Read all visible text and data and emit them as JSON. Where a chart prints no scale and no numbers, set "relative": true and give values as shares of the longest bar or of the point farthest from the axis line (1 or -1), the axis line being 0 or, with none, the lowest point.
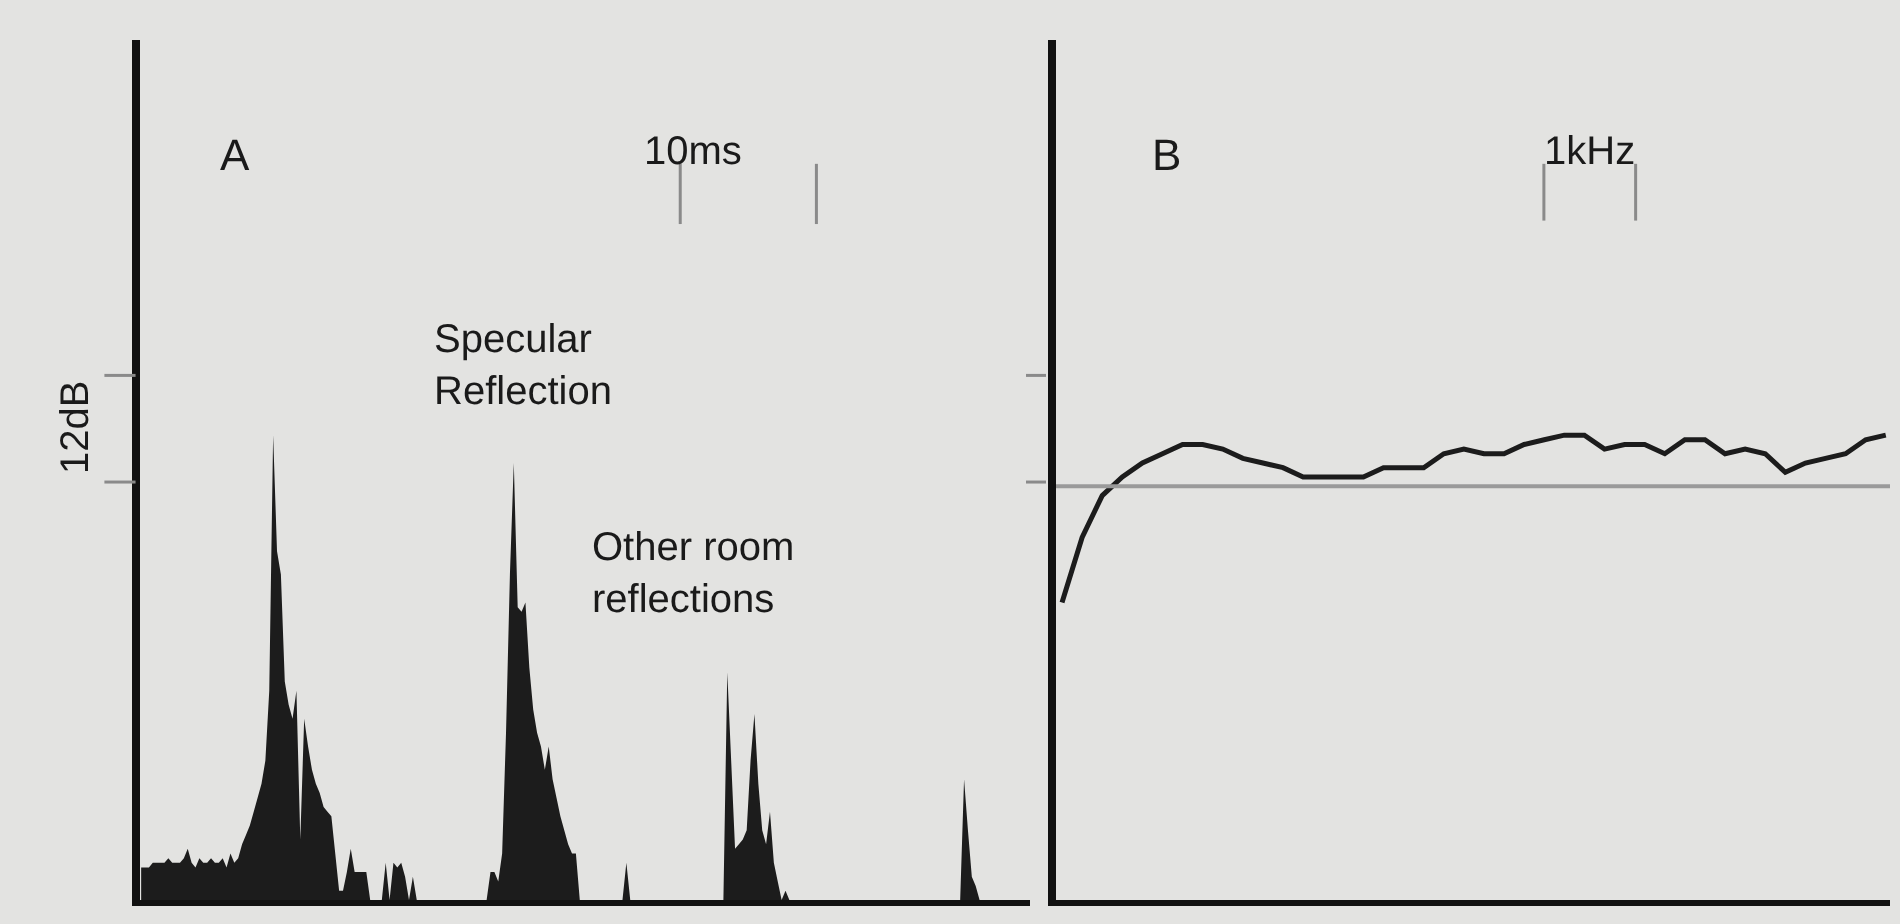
{
  "chart_data": [
    {
      "type": "area",
      "relative": true,
      "color": "#1c1c1c",
      "categories": [
        null,
        null,
        null,
        null,
        null,
        null,
        null,
        null,
        null,
        null,
        null,
        null,
        null,
        null,
        null,
        null,
        null,
        null,
        null,
        null,
        null,
        null,
        null,
        null,
        null,
        null,
        null,
        null,
        null,
        null,
        null,
        null,
        null,
        null,
        null,
        null,
        null,
        null,
        null,
        null,
        null,
        null,
        null,
        null,
        null,
        null,
        null,
        null,
        null,
        null,
        null,
        null,
        null,
        null,
        null,
        null,
        null,
        null,
        null,
        null,
        null,
        null,
        null,
        null,
        null,
        null,
        null,
        null,
        null,
        null,
        null,
        null,
        null,
        null,
        null,
        null,
        null,
        null,
        null,
        null,
        null,
        null,
        null,
        null,
        null,
        null,
        null,
        null,
        null,
        null,
        null,
        null,
        null,
        null,
        null,
        null,
        null,
        null,
        null,
        null,
        null,
        null,
        null,
        null,
        null,
        null,
        null,
        null,
        null,
        null,
        null,
        null,
        null,
        null,
        null,
        null,
        null,
        null,
        null,
        null,
        null,
        null,
        null,
        null,
        null,
        null,
        null,
        null,
        null,
        null,
        null,
        null,
        null,
        null,
        null,
        null,
        null,
        null,
        null,
        null,
        null,
        null,
        null,
        null,
        null,
        null,
        null,
        null,
        null,
        null,
        null,
        null,
        null,
        null,
        null,
        null,
        null,
        null,
        null,
        null,
        null,
        null,
        null,
        null,
        null,
        null,
        null,
        null,
        null,
        null,
        null,
        null,
        null,
        null,
        null,
        null,
        null,
        null,
        null,
        null,
        null,
        null,
        null,
        null,
        null,
        null,
        null,
        null,
        null,
        null,
        null,
        null,
        null,
        null,
        null,
        null,
        null,
        null,
        null,
        null,
        null,
        null,
        null,
        null,
        null,
        null,
        null,
        null,
        null,
        null,
        null,
        null,
        null,
        null,
        null,
        null,
        null,
        null
      ],
      "values": [
        0.07,
        0.07,
        0.07,
        0.08,
        0.08,
        0.08,
        0.08,
        0.09,
        0.08,
        0.08,
        0.08,
        0.09,
        0.11,
        0.08,
        0.07,
        0.09,
        0.08,
        0.08,
        0.09,
        0.08,
        0.08,
        0.09,
        0.07,
        0.1,
        0.08,
        0.09,
        0.12,
        0.14,
        0.16,
        0.19,
        0.22,
        0.25,
        0.3,
        0.45,
        1,
        0.75,
        0.7,
        0.47,
        0.42,
        0.39,
        0.45,
        0.13,
        0.39,
        0.33,
        0.28,
        0.25,
        0.23,
        0.2,
        0.19,
        0.18,
        0.1,
        0.02,
        0.02,
        0.06,
        0.11,
        0.06,
        0.06,
        0.06,
        0.06,
        0,
        0,
        0,
        0,
        0.08,
        0,
        0.08,
        0.07,
        0.08,
        0.05,
        0,
        0.05,
        0,
        0,
        0,
        0,
        0,
        0,
        0,
        0,
        0,
        0,
        0,
        0,
        0,
        0,
        0,
        0,
        0,
        0,
        0,
        0.06,
        0.06,
        0.04,
        0.1,
        0.36,
        0.7,
        0.94,
        0.63,
        0.62,
        0.64,
        0.5,
        0.41,
        0.36,
        0.33,
        0.28,
        0.33,
        0.26,
        0.22,
        0.18,
        0.15,
        0.12,
        0.1,
        0.1,
        0,
        0,
        0,
        0,
        0,
        0,
        0,
        0,
        0,
        0,
        0,
        0,
        0.08,
        0,
        0,
        0,
        0,
        0,
        0,
        0,
        0,
        0,
        0,
        0,
        0,
        0,
        0,
        0,
        0,
        0,
        0,
        0,
        0,
        0,
        0,
        0,
        0,
        0,
        0.49,
        0.3,
        0.11,
        0.12,
        0.13,
        0.15,
        0.3,
        0.4,
        0.25,
        0.15,
        0.12,
        0.19,
        0.08,
        0.04,
        0,
        0.02,
        0,
        0,
        0,
        0,
        0,
        0,
        0,
        0,
        0,
        0,
        0,
        0,
        0,
        0,
        0,
        0,
        0,
        0,
        0,
        0,
        0,
        0,
        0,
        0,
        0,
        0,
        0,
        0,
        0,
        0,
        0,
        0,
        0,
        0,
        0,
        0,
        0,
        0,
        0,
        0,
        0,
        0,
        0,
        0,
        0,
        0.26,
        0.15,
        0.05,
        0.03,
        0,
        0
      ],
      "annotations": [
        "A",
        "10ms",
        "12dB",
        "Specular\nReflection",
        "Other room\nreflections"
      ]
    },
    {
      "type": "line",
      "relative": true,
      "color": "#1c1c1c",
      "categories": [
        null,
        null,
        null,
        null,
        null,
        null,
        null,
        null,
        null,
        null,
        null,
        null,
        null,
        null,
        null,
        null,
        null,
        null,
        null,
        null,
        null,
        null,
        null,
        null,
        null,
        null,
        null,
        null,
        null,
        null,
        null,
        null,
        null,
        null,
        null,
        null,
        null,
        null,
        null,
        null,
        null,
        null
      ],
      "values": [
        0.64,
        0.78,
        0.87,
        0.91,
        0.94,
        0.96,
        0.98,
        0.98,
        0.97,
        0.95,
        0.94,
        0.93,
        0.91,
        0.91,
        0.91,
        0.91,
        0.93,
        0.93,
        0.93,
        0.96,
        0.97,
        0.96,
        0.96,
        0.98,
        0.99,
        1,
        1,
        0.97,
        0.98,
        0.98,
        0.96,
        0.99,
        0.99,
        0.96,
        0.97,
        0.96,
        0.92,
        0.94,
        0.95,
        0.96,
        0.99,
        1
      ],
      "ref_lines": [
        {
          "axis": "y",
          "value": 0.89,
          "color": "#9a9a9a"
        }
      ],
      "annotations": [
        "B",
        "1kHz"
      ]
    }
  ]
}
